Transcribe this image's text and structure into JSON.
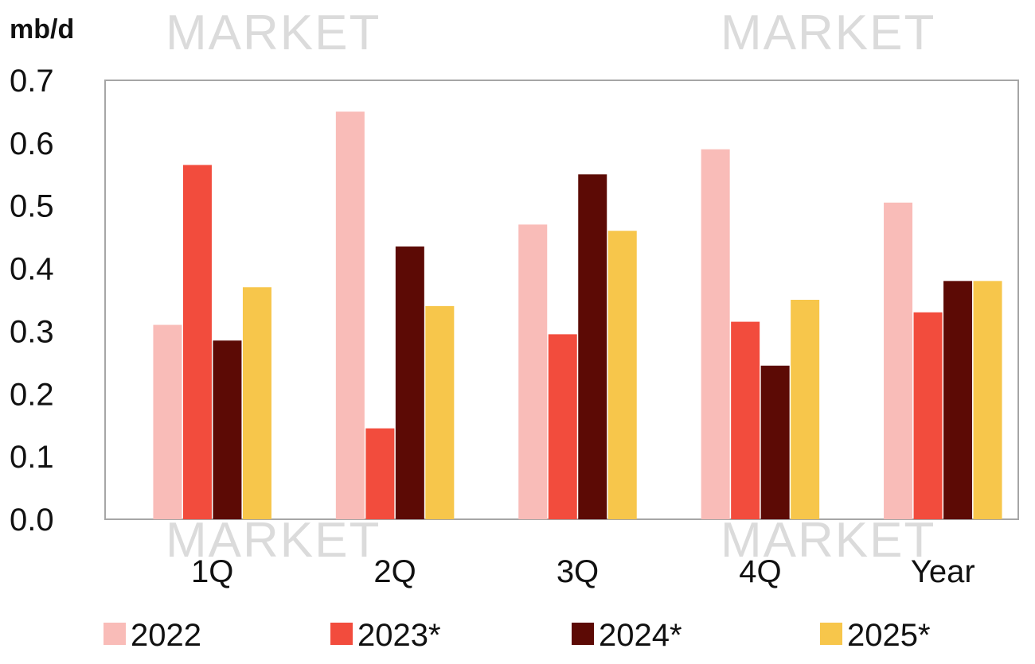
{
  "chart_data": {
    "type": "bar",
    "unit_label": "mb/d",
    "categories": [
      "1Q",
      "2Q",
      "3Q",
      "4Q",
      "Year"
    ],
    "series": [
      {
        "name": "2022",
        "color": "#f9bcb8",
        "values": [
          0.31,
          0.65,
          0.47,
          0.59,
          0.505
        ]
      },
      {
        "name": "2023*",
        "color": "#f24c3d",
        "values": [
          0.565,
          0.145,
          0.295,
          0.315,
          0.33
        ]
      },
      {
        "name": "2024*",
        "color": "#5c0a05",
        "values": [
          0.285,
          0.435,
          0.55,
          0.245,
          0.38
        ]
      },
      {
        "name": "2025*",
        "color": "#f7c64b",
        "values": [
          0.37,
          0.34,
          0.46,
          0.35,
          0.38
        ]
      }
    ],
    "yticks": [
      "0.0",
      "0.1",
      "0.2",
      "0.3",
      "0.4",
      "0.5",
      "0.6",
      "0.7"
    ],
    "ylim": [
      0,
      0.7
    ],
    "grid": false,
    "legend_position": "bottom"
  },
  "watermark": "MARKET"
}
